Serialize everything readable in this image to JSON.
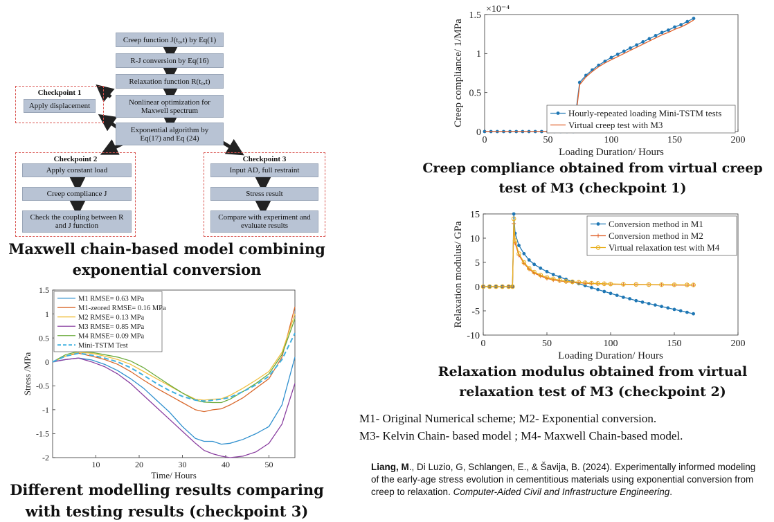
{
  "flowchart": {
    "main": [
      "Creep function J(t₀,t) by Eq(1)",
      "R-J conversion by Eq(16)",
      "Relaxation function R(t₀,t)",
      "Nonlinear optimization for Maxwell spectrum",
      "Exponential algorithm by Eq(17) and Eq (24)"
    ],
    "checkpoint1": {
      "title": "Checkpoint 1",
      "items": [
        "Apply displacement"
      ]
    },
    "checkpoint2": {
      "title": "Checkpoint 2",
      "items": [
        "Apply constant load",
        "Creep compliance J",
        "Check the coupling between R and J function"
      ]
    },
    "checkpoint3": {
      "title": "Checkpoint 3",
      "items": [
        "Input AD, full restraint",
        "Stress result",
        "Compare with experiment and evaluate results"
      ]
    },
    "caption": [
      "Maxwell chain-based model combining",
      "exponential conversion"
    ]
  },
  "captions": {
    "creep": [
      "Creep compliance obtained from virtual creep",
      "test of M3 (checkpoint 1)"
    ],
    "relax": [
      "Relaxation modulus obtained from virtual",
      "relaxation test of M3 (checkpoint 2)"
    ],
    "stress": [
      "Different modelling results comparing",
      "with testing results (checkpoint 3)"
    ]
  },
  "notes": {
    "line1": "M1- Original Numerical scheme; M2- Exponential conversion.",
    "line2": "M3- Kelvin Chain- based model ; M4- Maxwell Chain-based model."
  },
  "reference": {
    "author_bold": "Liang, M",
    "authors_rest": "., Di Luzio, G, Schlangen, E., & Šavija, B. (2024). Experimentally informed modeling of the early-age stress evolution in cementitious materials using exponential conversion from creep to relaxation. ",
    "journal": "Computer-Aided Civil and Infrastructure Engineering",
    "end": "."
  },
  "chart_data": [
    {
      "type": "line",
      "id": "creep",
      "xlabel": "Loading Duration/ Hours",
      "ylabel": "Creep compliance/ 1/MPa",
      "exponent_label": "×10⁻⁴",
      "xlim": [
        0,
        200
      ],
      "ylim": [
        0,
        1.5
      ],
      "xticks": [
        0,
        50,
        100,
        150,
        200
      ],
      "yticks": [
        0,
        0.5,
        1,
        1.5
      ],
      "ytick_labels": [
        "0",
        "0.5",
        "1",
        "1.5"
      ],
      "legend": "bottom-right",
      "series": [
        {
          "name": "Hourly-repeated loading Mini-TSTM tests",
          "color": "#1f77b4",
          "marker": "dot",
          "x": [
            0,
            5,
            10,
            15,
            20,
            25,
            30,
            35,
            40,
            45,
            50,
            55,
            60,
            65,
            70,
            72,
            75,
            80,
            85,
            90,
            95,
            100,
            105,
            110,
            115,
            120,
            125,
            130,
            135,
            140,
            145,
            150,
            155,
            160,
            165
          ],
          "y": [
            0,
            0,
            0,
            0,
            0,
            0,
            0,
            0,
            0,
            0,
            0,
            0,
            0,
            0,
            0,
            0.25,
            0.63,
            0.72,
            0.79,
            0.85,
            0.9,
            0.95,
            0.99,
            1.03,
            1.07,
            1.11,
            1.15,
            1.19,
            1.23,
            1.27,
            1.3,
            1.34,
            1.37,
            1.41,
            1.45
          ]
        },
        {
          "name": "Virtual creep test with M3",
          "color": "#e0602a",
          "marker": "none",
          "x": [
            0,
            70,
            72,
            75,
            80,
            85,
            90,
            95,
            100,
            105,
            110,
            115,
            120,
            125,
            130,
            135,
            140,
            145,
            150,
            155,
            160,
            165
          ],
          "y": [
            0,
            0,
            0.2,
            0.6,
            0.7,
            0.77,
            0.83,
            0.88,
            0.92,
            0.96,
            1.0,
            1.04,
            1.08,
            1.12,
            1.16,
            1.2,
            1.24,
            1.27,
            1.31,
            1.34,
            1.38,
            1.43
          ]
        }
      ]
    },
    {
      "type": "line",
      "id": "relax",
      "xlabel": "Loading Duration/ Hours",
      "ylabel": "Relaxation modulus/ GPa",
      "xlim": [
        0,
        200
      ],
      "ylim": [
        -10,
        15
      ],
      "xticks": [
        0,
        50,
        100,
        150,
        200
      ],
      "yticks": [
        -10,
        -5,
        0,
        5,
        10,
        15
      ],
      "legend": "top-right",
      "series": [
        {
          "name": "Conversion method in M1",
          "color": "#1f77b4",
          "marker": "dot",
          "x": [
            0,
            5,
            10,
            15,
            20,
            23,
            24,
            25,
            28,
            32,
            36,
            40,
            45,
            50,
            55,
            60,
            65,
            70,
            75,
            80,
            85,
            90,
            95,
            100,
            105,
            110,
            115,
            120,
            125,
            130,
            135,
            140,
            145,
            150,
            155,
            160,
            165
          ],
          "y": [
            0,
            0,
            0,
            0,
            0,
            0,
            15,
            11,
            8.5,
            6.8,
            5.5,
            4.6,
            3.8,
            3.1,
            2.5,
            2.0,
            1.5,
            1.0,
            0.6,
            0.2,
            -0.2,
            -0.6,
            -1.0,
            -1.4,
            -1.8,
            -2.2,
            -2.5,
            -2.9,
            -3.2,
            -3.5,
            -3.8,
            -4.1,
            -4.4,
            -4.7,
            -5.0,
            -5.3,
            -5.6
          ]
        },
        {
          "name": "Conversion method in M2",
          "color": "#e0602a",
          "marker": "plus",
          "x": [
            0,
            5,
            10,
            15,
            20,
            23,
            24,
            25,
            28,
            32,
            36,
            40,
            45,
            50,
            55,
            60,
            65,
            70,
            75,
            80,
            85,
            90,
            95,
            100,
            110,
            120,
            130,
            140,
            150,
            160,
            165
          ],
          "y": [
            0,
            0,
            0,
            0,
            0,
            0,
            13,
            9,
            6.5,
            4.8,
            3.6,
            2.8,
            2.2,
            1.7,
            1.4,
            1.2,
            1.0,
            0.9,
            0.8,
            0.7,
            0.65,
            0.6,
            0.55,
            0.5,
            0.45,
            0.4,
            0.38,
            0.35,
            0.33,
            0.3,
            0.3
          ]
        },
        {
          "name": "Virtual relaxation test with M4",
          "color": "#e8b020",
          "marker": "circle",
          "x": [
            0,
            5,
            10,
            15,
            20,
            23,
            24,
            25,
            28,
            32,
            36,
            40,
            45,
            50,
            55,
            60,
            65,
            70,
            75,
            80,
            85,
            90,
            95,
            100,
            110,
            120,
            130,
            140,
            150,
            160,
            165
          ],
          "y": [
            0,
            0,
            0,
            0,
            0,
            0,
            14,
            9.5,
            6.8,
            5.0,
            3.8,
            3.0,
            2.4,
            1.9,
            1.6,
            1.3,
            1.1,
            1.0,
            0.9,
            0.8,
            0.7,
            0.65,
            0.6,
            0.55,
            0.5,
            0.45,
            0.42,
            0.4,
            0.38,
            0.36,
            0.35
          ]
        }
      ]
    },
    {
      "type": "line",
      "id": "stress",
      "xlabel": "Time/ Hours",
      "ylabel": "Stress /MPa",
      "xlim": [
        0,
        56
      ],
      "ylim": [
        -2,
        1.5
      ],
      "xticks": [
        10,
        20,
        30,
        40,
        50
      ],
      "yticks": [
        -2,
        -1.5,
        -1,
        -0.5,
        0,
        0.5,
        1,
        1.5
      ],
      "legend": "top-left",
      "series": [
        {
          "name": "M1 RMSE= 0.63 MPa",
          "color": "#2e8fce",
          "dash": false,
          "x": [
            0,
            3,
            6,
            9,
            12,
            15,
            18,
            21,
            24,
            27,
            30,
            33,
            35,
            37,
            39,
            41,
            44,
            47,
            50,
            53,
            56
          ],
          "y": [
            0,
            0.05,
            0.08,
            0.04,
            -0.05,
            -0.18,
            -0.35,
            -0.55,
            -0.8,
            -1.05,
            -1.35,
            -1.6,
            -1.66,
            -1.66,
            -1.72,
            -1.7,
            -1.62,
            -1.5,
            -1.35,
            -0.9,
            0.1
          ]
        },
        {
          "name": "M1-zeored RMSE= 0.16 MPa",
          "color": "#d9682c",
          "dash": false,
          "x": [
            0,
            3,
            6,
            9,
            12,
            15,
            18,
            21,
            24,
            27,
            30,
            33,
            35,
            37,
            39,
            41,
            44,
            47,
            50,
            53,
            56
          ],
          "y": [
            0,
            0.12,
            0.18,
            0.12,
            0.05,
            -0.05,
            -0.2,
            -0.38,
            -0.55,
            -0.7,
            -0.85,
            -1.0,
            -1.04,
            -1.0,
            -0.98,
            -0.9,
            -0.75,
            -0.55,
            -0.35,
            0.1,
            1.15
          ]
        },
        {
          "name": "M2 RMSE= 0.13 MPa",
          "color": "#f0c040",
          "dash": false,
          "x": [
            0,
            3,
            6,
            9,
            12,
            15,
            18,
            21,
            24,
            27,
            30,
            33,
            35,
            37,
            39,
            41,
            44,
            47,
            50,
            53,
            56
          ],
          "y": [
            0,
            0.12,
            0.2,
            0.18,
            0.12,
            0.05,
            -0.05,
            -0.2,
            -0.35,
            -0.5,
            -0.65,
            -0.78,
            -0.8,
            -0.78,
            -0.77,
            -0.7,
            -0.55,
            -0.38,
            -0.2,
            0.2,
            1.0
          ]
        },
        {
          "name": "M3 RMSE= 0.85 MPa",
          "color": "#8a3fa0",
          "dash": false,
          "x": [
            0,
            3,
            6,
            9,
            12,
            15,
            18,
            21,
            24,
            27,
            30,
            33,
            35,
            37,
            39,
            41,
            44,
            47,
            50,
            53,
            56
          ],
          "y": [
            0,
            0.05,
            0.08,
            0,
            -0.1,
            -0.25,
            -0.45,
            -0.7,
            -0.95,
            -1.2,
            -1.45,
            -1.7,
            -1.85,
            -1.92,
            -1.97,
            -2.0,
            -1.97,
            -1.88,
            -1.7,
            -1.3,
            -0.45
          ]
        },
        {
          "name": "M4 RMSE= 0.09 MPa",
          "color": "#6aaa3a",
          "dash": false,
          "x": [
            0,
            3,
            6,
            9,
            12,
            15,
            18,
            21,
            24,
            27,
            30,
            33,
            35,
            37,
            39,
            41,
            44,
            47,
            50,
            53,
            56
          ],
          "y": [
            0,
            0.15,
            0.22,
            0.2,
            0.15,
            0.1,
            0.02,
            -0.12,
            -0.3,
            -0.48,
            -0.65,
            -0.8,
            -0.84,
            -0.85,
            -0.85,
            -0.78,
            -0.62,
            -0.45,
            -0.25,
            0.15,
            0.9
          ]
        },
        {
          "name": "Mini-TSTM Test",
          "color": "#3fb0e0",
          "dash": true,
          "x": [
            0,
            3,
            6,
            9,
            12,
            15,
            18,
            21,
            24,
            27,
            30,
            33,
            35,
            37,
            39,
            41,
            44,
            47,
            50,
            53,
            56
          ],
          "y": [
            0,
            0.12,
            0.18,
            0.14,
            0.08,
            0,
            -0.12,
            -0.28,
            -0.45,
            -0.6,
            -0.72,
            -0.8,
            -0.82,
            -0.8,
            -0.78,
            -0.74,
            -0.62,
            -0.48,
            -0.3,
            0.05,
            0.6
          ]
        }
      ]
    }
  ]
}
